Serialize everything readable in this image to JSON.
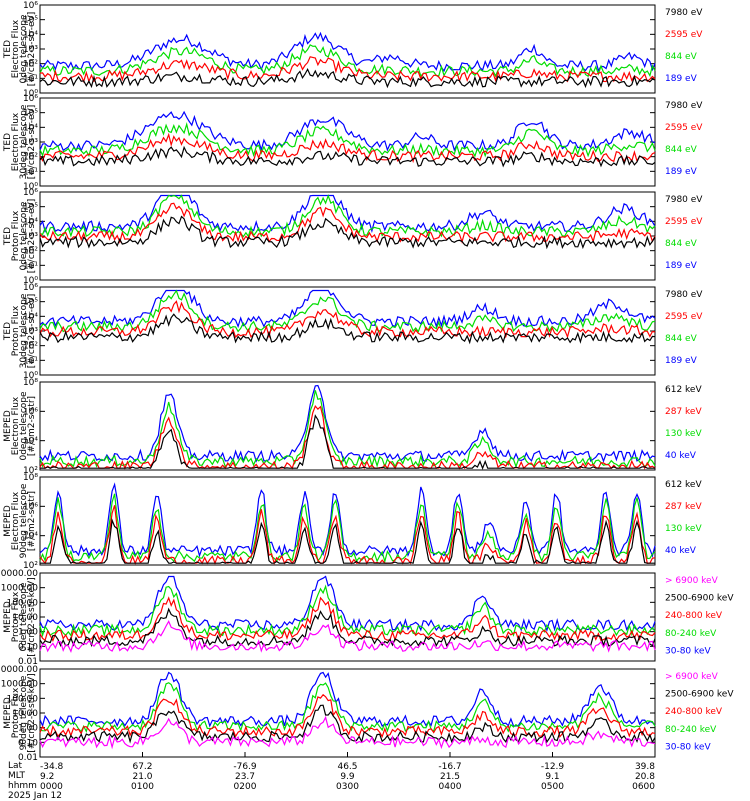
{
  "colors": {
    "blue": "#0000ff",
    "red": "#ff0000",
    "green": "#00dd00",
    "black": "#000000",
    "magenta": "#ff00ff"
  },
  "chart_data": [
    {
      "type": "line",
      "instrument": "TED",
      "ylabel": [
        "TED",
        "Electron Flux",
        "0deg telescope",
        "[#/cm2-s-str-eV]"
      ],
      "yscale": "log",
      "ytick_labels": [
        "10⁰",
        "10¹",
        "10²",
        "10³",
        "10⁴",
        "10⁵",
        "10⁶"
      ],
      "ylim": [
        1,
        1000000
      ],
      "legend": [
        {
          "label": "7980 eV",
          "color": "black"
        },
        {
          "label": "2595 eV",
          "color": "red"
        },
        {
          "label": "844 eV",
          "color": "green"
        },
        {
          "label": "189 eV",
          "color": "blue"
        }
      ],
      "bumps": [
        [
          23,
          30,
          50
        ],
        [
          45,
          33,
          40
        ],
        [
          57,
          10,
          25
        ],
        [
          80,
          20,
          20
        ],
        [
          96,
          10,
          20
        ]
      ],
      "base": 25
    },
    {
      "type": "line",
      "instrument": "TED",
      "ylabel": [
        "TED",
        "Electron Flux",
        "30deg telescope",
        "[#/cm2-s-str-eV]"
      ],
      "yscale": "log",
      "ytick_labels": [
        "10⁰",
        "10¹",
        "10²",
        "10³",
        "10⁴",
        "10⁵",
        "10⁶"
      ],
      "ylim": [
        1,
        1000000
      ],
      "legend": [
        {
          "label": "7980 eV",
          "color": "black"
        },
        {
          "label": "2595 eV",
          "color": "red"
        },
        {
          "label": "844 eV",
          "color": "green"
        },
        {
          "label": "189 eV",
          "color": "blue"
        }
      ],
      "bumps": [
        [
          22,
          35,
          50
        ],
        [
          46,
          30,
          40
        ],
        [
          62,
          10,
          20
        ],
        [
          80,
          30,
          25
        ],
        [
          96,
          15,
          30
        ]
      ],
      "base": 40
    },
    {
      "type": "line",
      "instrument": "TED",
      "ylabel": [
        "TED",
        "Proton Flux",
        "0deg telescope",
        "[#/cm2-s-str-eV]"
      ],
      "yscale": "log",
      "ytick_labels": [
        "10⁰",
        "10¹",
        "10²",
        "10³",
        "10⁴",
        "10⁵",
        "10⁶"
      ],
      "ylim": [
        1,
        100000
      ],
      "legend": [
        {
          "label": "7980 eV",
          "color": "black"
        },
        {
          "label": "2595 eV",
          "color": "red"
        },
        {
          "label": "844 eV",
          "color": "green"
        },
        {
          "label": "189 eV",
          "color": "blue"
        }
      ],
      "bumps": [
        [
          22,
          50,
          30
        ],
        [
          46,
          45,
          30
        ],
        [
          72,
          15,
          25
        ],
        [
          95,
          20,
          30
        ]
      ],
      "base": 55
    },
    {
      "type": "line",
      "instrument": "TED",
      "ylabel": [
        "TED",
        "Proton Flux",
        "30deg telescope",
        "[#/cm2-s-str-eV]"
      ],
      "yscale": "log",
      "ytick_labels": [
        "10⁰",
        "10¹",
        "10²",
        "10³",
        "10⁴",
        "10⁵",
        "10⁶"
      ],
      "ylim": [
        1,
        100000
      ],
      "legend": [
        {
          "label": "7980 eV",
          "color": "black"
        },
        {
          "label": "2595 eV",
          "color": "red"
        },
        {
          "label": "844 eV",
          "color": "green"
        },
        {
          "label": "189 eV",
          "color": "blue"
        }
      ],
      "bumps": [
        [
          22,
          45,
          30
        ],
        [
          46,
          40,
          30
        ],
        [
          72,
          15,
          25
        ],
        [
          93,
          20,
          30
        ]
      ],
      "base": 55
    },
    {
      "type": "line",
      "instrument": "MEPED",
      "ylabel": [
        "MEPED",
        "Electron Flux",
        "0deg telescope",
        "[#/cm2-s-str]"
      ],
      "yscale": "log",
      "ytick_labels": [
        "10²",
        "10⁴",
        "10⁶",
        "10⁸"
      ],
      "ylim": [
        100,
        100000000
      ],
      "legend": [
        {
          "label": "612 keV",
          "color": "black"
        },
        {
          "label": "287 keV",
          "color": "red"
        },
        {
          "label": "130 keV",
          "color": "green"
        },
        {
          "label": "40 keV",
          "color": "blue"
        }
      ],
      "bumps": [
        [
          21,
          70,
          15
        ],
        [
          45,
          85,
          15
        ],
        [
          72,
          30,
          15
        ]
      ],
      "base": 10
    },
    {
      "type": "line",
      "instrument": "MEPED",
      "ylabel": [
        "MEPED",
        "Electron Flux",
        "90deg telescope",
        "[#/cm2-s-str]"
      ],
      "yscale": "log",
      "ytick_labels": [
        "10²",
        "10⁴",
        "10⁶",
        "10⁸"
      ],
      "ylim": [
        100,
        100000000
      ],
      "legend": [
        {
          "label": "612 keV",
          "color": "black"
        },
        {
          "label": "287 keV",
          "color": "red"
        },
        {
          "label": "130 keV",
          "color": "green"
        },
        {
          "label": "40 keV",
          "color": "blue"
        }
      ],
      "bumps": [
        [
          3,
          70,
          8
        ],
        [
          12,
          75,
          8
        ],
        [
          19,
          65,
          8
        ],
        [
          36,
          70,
          8
        ],
        [
          43,
          65,
          8
        ],
        [
          48,
          70,
          8
        ],
        [
          62,
          70,
          8
        ],
        [
          68,
          70,
          8
        ],
        [
          73,
          35,
          10
        ],
        [
          79,
          60,
          8
        ],
        [
          84,
          65,
          8
        ],
        [
          92,
          70,
          8
        ],
        [
          97,
          70,
          8
        ]
      ],
      "base": 10
    },
    {
      "type": "line",
      "instrument": "MEPED",
      "ylabel": [
        "MEPED",
        "Proton Flux",
        "0deg telescope",
        "[#/cm2-s-str-keV]"
      ],
      "yscale": "log",
      "ytick_labels": [
        "0.01",
        "0.10",
        "1.00",
        "10.00",
        "100.00",
        "1000.00",
        "10000.00"
      ],
      "ylim": [
        0.01,
        10000
      ],
      "legend": [
        {
          "label": "> 6900 keV",
          "color": "magenta"
        },
        {
          "label": "2500-6900 keV",
          "color": "black"
        },
        {
          "label": "240-800 keV",
          "color": "red"
        },
        {
          "label": "80-240 keV",
          "color": "green"
        },
        {
          "label": "30-80 keV",
          "color": "blue"
        }
      ],
      "bumps": [
        [
          21,
          55,
          20
        ],
        [
          46,
          55,
          20
        ],
        [
          72,
          35,
          15
        ]
      ],
      "base": 35
    },
    {
      "type": "line",
      "instrument": "MEPED",
      "ylabel": [
        "MEPED",
        "Proton Flux",
        "90deg telescope",
        "[#/cm2-s-str-keV]"
      ],
      "yscale": "log",
      "ytick_labels": [
        "0.01",
        "0.10",
        "1.00",
        "10.00",
        "100.00",
        "1000.00",
        "10000.00"
      ],
      "ylim": [
        0.01,
        10000
      ],
      "legend": [
        {
          "label": "> 6900 keV",
          "color": "magenta"
        },
        {
          "label": "2500-6900 keV",
          "color": "black"
        },
        {
          "label": "240-800 keV",
          "color": "red"
        },
        {
          "label": "80-240 keV",
          "color": "green"
        },
        {
          "label": "30-80 keV",
          "color": "blue"
        }
      ],
      "bumps": [
        [
          21,
          55,
          20
        ],
        [
          46,
          55,
          20
        ],
        [
          72,
          35,
          15
        ],
        [
          91,
          40,
          20
        ]
      ],
      "base": 35
    }
  ],
  "x_axis": {
    "row_labels": [
      "Lat",
      "MLT",
      "hhmm"
    ],
    "date": "2025 Jan 12",
    "ticks": [
      {
        "lat": "-34.8",
        "mlt": "9.2",
        "hhmm": "0000"
      },
      {
        "lat": "67.2",
        "mlt": "21.0",
        "hhmm": "0100"
      },
      {
        "lat": "-76.9",
        "mlt": "23.7",
        "hhmm": "0200"
      },
      {
        "lat": "46.5",
        "mlt": "9.9",
        "hhmm": "0300"
      },
      {
        "lat": "-16.7",
        "mlt": "21.5",
        "hhmm": "0400"
      },
      {
        "lat": "-12.9",
        "mlt": "9.1",
        "hhmm": "0500"
      },
      {
        "lat": "39.8",
        "mlt": "20.8",
        "hhmm": "0600"
      }
    ]
  }
}
